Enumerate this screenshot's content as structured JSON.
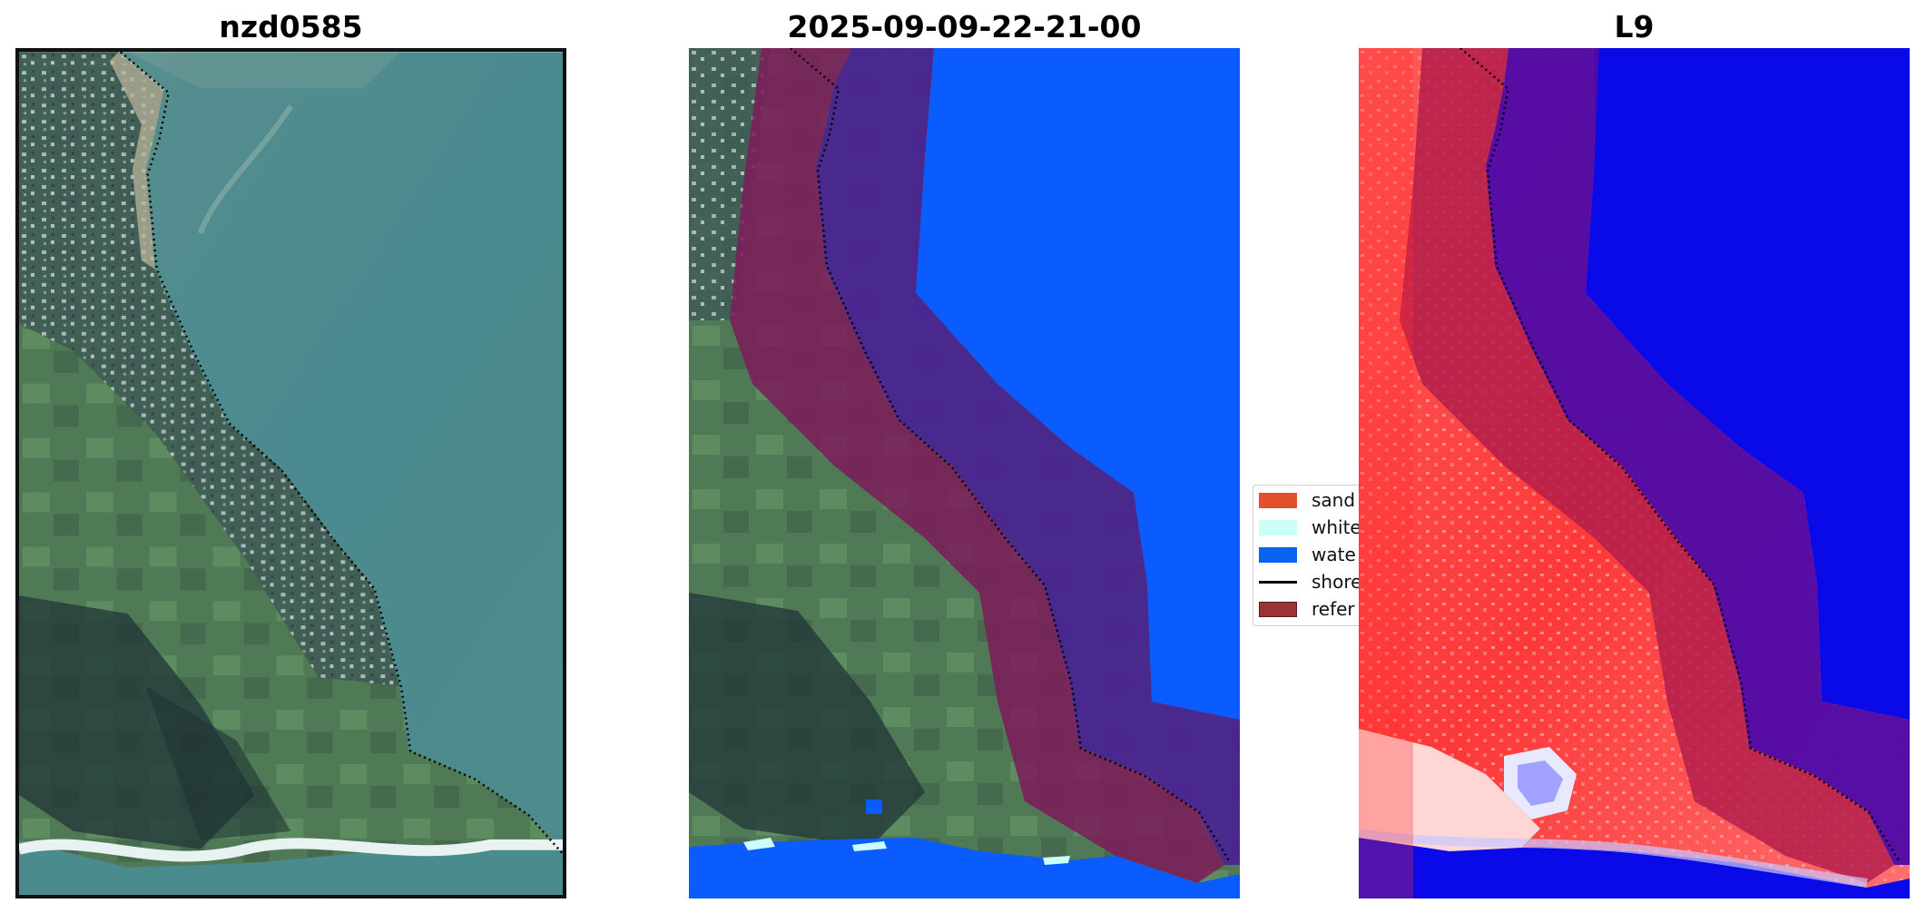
{
  "panels": [
    {
      "title": "nzd0585"
    },
    {
      "title": "2025-09-09-22-21-00"
    },
    {
      "title": "L9"
    }
  ],
  "legend": {
    "items": [
      {
        "label": "sand",
        "color": "#e0502d",
        "kind": "patch"
      },
      {
        "label": "white",
        "color": "#ccfffb",
        "kind": "patch"
      },
      {
        "label": "wate",
        "color": "#0a62f3",
        "kind": "patch"
      },
      {
        "label": "shore",
        "color": "#000000",
        "kind": "line"
      },
      {
        "label": "refer",
        "color": "#9a3333",
        "kind": "patch"
      }
    ]
  },
  "colors": {
    "water_class": "#0a5cff",
    "reference_buffer": "#7d1b5a",
    "offshore_buffer": "#4a2295",
    "index_positive": "#ff3030",
    "index_negative": "#0000e6",
    "sea_true_color": "#4b8a8f",
    "land_true_color": "#476a52"
  }
}
